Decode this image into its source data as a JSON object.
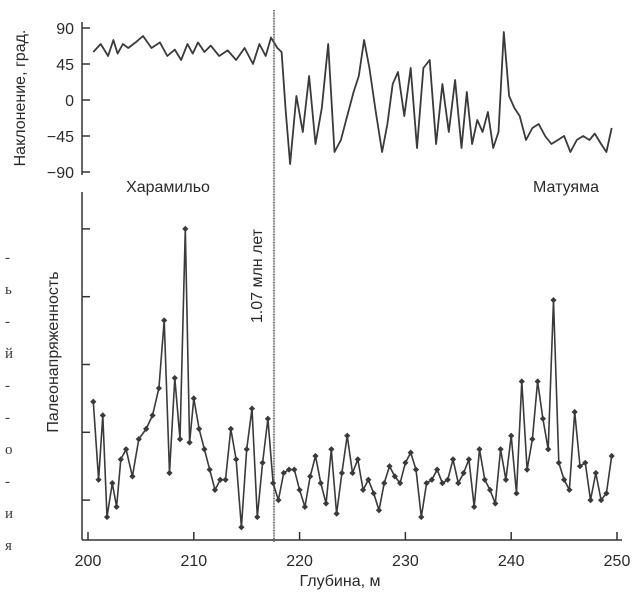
{
  "chart_data": [
    {
      "type": "line",
      "ylabel": "Наклонение, град.",
      "xlim": [
        200,
        250
      ],
      "ylim": [
        -90,
        90
      ],
      "yticks": [
        90,
        45,
        0,
        -45,
        -90
      ],
      "grid": false,
      "x": [
        200.5,
        201.2,
        201.9,
        202.4,
        202.8,
        203.3,
        203.8,
        204.5,
        205.2,
        206.0,
        206.8,
        207.5,
        208.2,
        208.8,
        209.4,
        209.9,
        210.4,
        211.0,
        211.6,
        212.4,
        213.2,
        214.0,
        214.8,
        215.6,
        216.2,
        216.8,
        217.3,
        217.9,
        218.3,
        218.7,
        219.1,
        219.7,
        220.3,
        220.9,
        221.5,
        222.1,
        222.7,
        223.3,
        223.9,
        224.5,
        225.1,
        225.6,
        226.1,
        226.6,
        227.2,
        227.8,
        228.3,
        228.8,
        229.3,
        229.9,
        230.5,
        231.1,
        231.7,
        232.3,
        232.9,
        233.5,
        234.1,
        234.7,
        235.3,
        235.8,
        236.3,
        236.8,
        237.3,
        237.8,
        238.3,
        238.8,
        239.3,
        239.8,
        240.3,
        240.8,
        241.4,
        242.0,
        242.6,
        243.2,
        243.8,
        244.4,
        245.0,
        245.6,
        246.2,
        246.8,
        247.4,
        247.9,
        248.5,
        249.0,
        249.5
      ],
      "values": [
        60,
        70,
        55,
        75,
        58,
        70,
        65,
        72,
        80,
        65,
        72,
        55,
        63,
        50,
        70,
        58,
        72,
        60,
        68,
        55,
        62,
        50,
        65,
        45,
        70,
        55,
        78,
        65,
        60,
        -15,
        -80,
        5,
        -40,
        30,
        -55,
        -10,
        70,
        -65,
        -50,
        -20,
        10,
        30,
        75,
        40,
        -15,
        -65,
        -30,
        20,
        35,
        -20,
        40,
        -60,
        40,
        50,
        -55,
        20,
        -40,
        25,
        -60,
        10,
        -55,
        -25,
        -40,
        -15,
        -60,
        -40,
        85,
        5,
        -10,
        -20,
        -50,
        -35,
        -30,
        -45,
        -55,
        -50,
        -45,
        -65,
        -50,
        -45,
        -50,
        -42,
        -55,
        -65,
        -35
      ],
      "annotations": [
        "1.07 млн лет"
      ]
    },
    {
      "type": "line",
      "ylabel": "Палеонапряженность",
      "xlabel": "Глубина, м",
      "xlim": [
        200,
        250
      ],
      "xticks": [
        200,
        210,
        220,
        230,
        240,
        250
      ],
      "ylim": [
        0,
        10
      ],
      "grid": false,
      "x": [
        200.5,
        201.0,
        201.4,
        201.8,
        202.3,
        202.7,
        203.1,
        203.6,
        204.2,
        204.8,
        205.5,
        206.1,
        206.7,
        207.2,
        207.7,
        208.2,
        208.7,
        209.2,
        209.6,
        210.0,
        210.5,
        211.0,
        211.5,
        212.0,
        212.5,
        213.0,
        213.5,
        214.0,
        214.5,
        215.0,
        215.5,
        216.0,
        216.5,
        217.0,
        217.5,
        218.0,
        218.5,
        219.0,
        219.5,
        220.0,
        220.5,
        221.0,
        221.5,
        222.0,
        222.5,
        223.0,
        223.5,
        224.0,
        224.5,
        225.0,
        225.5,
        226.0,
        226.5,
        227.0,
        227.5,
        228.0,
        228.5,
        229.0,
        229.5,
        230.0,
        230.5,
        231.0,
        231.5,
        232.0,
        232.5,
        233.0,
        233.5,
        234.0,
        234.5,
        235.0,
        235.5,
        236.0,
        236.5,
        237.0,
        237.5,
        238.0,
        238.5,
        239.0,
        239.5,
        240.0,
        240.5,
        241.0,
        241.5,
        242.0,
        242.5,
        243.0,
        243.5,
        244.0,
        244.5,
        245.0,
        245.5,
        246.0,
        246.5,
        247.0,
        247.5,
        248.0,
        248.5,
        249.0,
        249.5
      ],
      "values": [
        3.9,
        1.6,
        3.5,
        0.5,
        1.5,
        0.8,
        2.2,
        2.5,
        1.7,
        2.8,
        3.1,
        3.5,
        4.3,
        6.3,
        1.8,
        4.6,
        2.8,
        9.0,
        2.7,
        4.0,
        3.1,
        2.5,
        1.9,
        1.3,
        1.6,
        1.6,
        3.1,
        2.2,
        0.2,
        2.5,
        3.7,
        0.5,
        2.1,
        3.4,
        1.5,
        1.0,
        1.8,
        1.9,
        1.9,
        1.3,
        0.8,
        1.7,
        2.3,
        1.5,
        0.9,
        2.5,
        0.6,
        1.8,
        2.9,
        1.8,
        2.2,
        1.3,
        1.6,
        1.2,
        0.7,
        1.5,
        2.0,
        1.7,
        1.5,
        2.1,
        2.4,
        1.9,
        0.5,
        1.5,
        1.6,
        1.9,
        1.5,
        1.6,
        2.2,
        1.5,
        1.8,
        2.2,
        0.8,
        2.5,
        1.6,
        1.3,
        0.9,
        2.5,
        1.6,
        2.9,
        1.2,
        4.5,
        1.9,
        2.8,
        4.5,
        3.4,
        2.5,
        6.9,
        2.1,
        1.6,
        1.3,
        3.6,
        2.0,
        2.1,
        1.0,
        1.8,
        1.0,
        1.2,
        2.3
      ],
      "annotations": [
        "Харамильо",
        "Матуяма"
      ]
    }
  ],
  "side_text": [
    "-",
    "ь",
    "-",
    "й",
    "-",
    "-",
    "о",
    "-",
    "и",
    "я"
  ]
}
